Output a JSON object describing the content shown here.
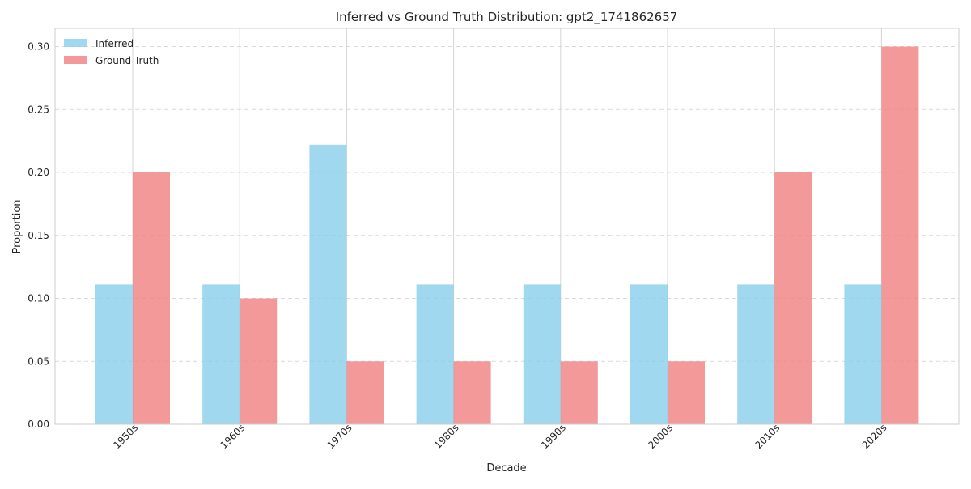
{
  "chart_data": {
    "type": "bar",
    "title": "Inferred vs Ground Truth Distribution: gpt2_1741862657",
    "xlabel": "Decade",
    "ylabel": "Proportion",
    "categories": [
      "1950s",
      "1960s",
      "1970s",
      "1980s",
      "1990s",
      "2000s",
      "2010s",
      "2020s"
    ],
    "series": [
      {
        "name": "Inferred",
        "color": "#87CEEB",
        "values": [
          0.111,
          0.111,
          0.222,
          0.111,
          0.111,
          0.111,
          0.111,
          0.111
        ]
      },
      {
        "name": "Ground Truth",
        "color": "#F08080",
        "values": [
          0.2,
          0.1,
          0.05,
          0.05,
          0.05,
          0.05,
          0.2,
          0.3
        ]
      }
    ],
    "ylim": [
      0,
      0.3145
    ],
    "yticks": [
      "0.00",
      "0.05",
      "0.10",
      "0.15",
      "0.20",
      "0.25",
      "0.30"
    ],
    "grid": true,
    "legend_position": "top-left"
  }
}
